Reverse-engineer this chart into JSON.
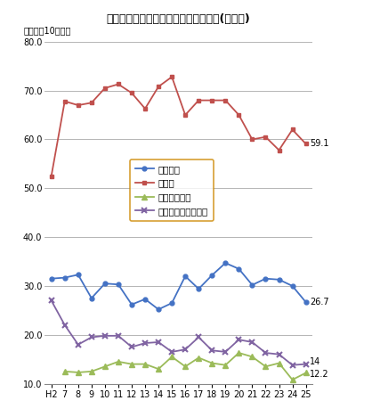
{
  "title": "脳血管疾患の種類別死亡率の年次推移(熊本県)",
  "ylabel": "率（人口10万対）",
  "x_labels": [
    "H2",
    "7",
    "8",
    "9",
    "10",
    "11",
    "12",
    "13",
    "14",
    "15",
    "16",
    "17",
    "18",
    "19",
    "20",
    "21",
    "22",
    "23",
    "24",
    "25"
  ],
  "nounai": [
    31.5,
    31.7,
    32.3,
    27.5,
    30.5,
    30.3,
    26.2,
    27.3,
    25.2,
    26.5,
    32.0,
    29.4,
    32.2,
    34.7,
    33.5,
    30.2,
    31.5,
    31.3,
    30.0,
    26.7
  ],
  "kosoku": [
    52.5,
    67.8,
    67.0,
    67.5,
    70.5,
    71.3,
    69.5,
    66.3,
    70.8,
    72.8,
    65.0,
    68.0,
    68.0,
    68.0,
    65.0,
    60.0,
    60.5,
    57.8,
    62.0,
    59.1
  ],
  "kumo": [
    null,
    12.5,
    12.3,
    12.5,
    13.5,
    14.5,
    14.0,
    14.0,
    13.0,
    15.5,
    13.5,
    15.3,
    14.2,
    13.8,
    16.3,
    15.5,
    13.5,
    14.2,
    10.8,
    12.2
  ],
  "sonota": [
    27.0,
    22.0,
    18.0,
    19.5,
    19.8,
    19.8,
    17.5,
    18.3,
    18.5,
    16.5,
    17.0,
    19.5,
    16.8,
    16.5,
    19.0,
    18.5,
    16.3,
    16.0,
    13.8,
    14.0
  ],
  "nounai_color": "#4472C4",
  "kosoku_color": "#C0504D",
  "kumo_color": "#9BBB59",
  "sonota_color": "#8064A2",
  "ylim_min": 10.0,
  "ylim_max": 80.0,
  "yticks": [
    10.0,
    20.0,
    30.0,
    40.0,
    50.0,
    60.0,
    70.0,
    80.0
  ],
  "end_label_nounai": "26.7",
  "end_label_kosoku": "59.1",
  "end_label_kumo": "12.2",
  "end_label_sonota": "14",
  "legend_nounai": "脳内出血",
  "legend_kosoku": "脳梗塞",
  "legend_kumo": "くも膜下出血",
  "legend_sonota": "その他の脳血管疾患",
  "background_color": "#FFFFFF",
  "grid_color": "#AAAAAA",
  "legend_edge_color": "#CC8800"
}
